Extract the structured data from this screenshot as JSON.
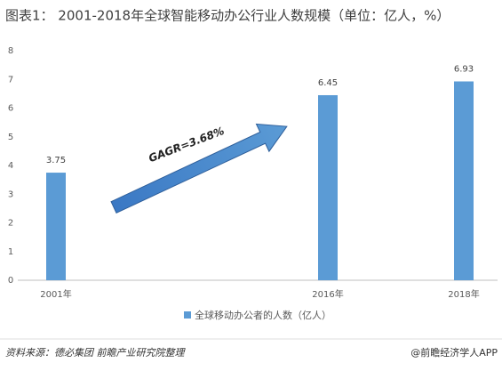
{
  "chart_data": {
    "type": "bar",
    "title": "图表1：  2001-2018年全球智能移动办公行业人数规模（单位：亿人，%）",
    "categories": [
      "2001年",
      null,
      "2016年",
      "2018年"
    ],
    "series": [
      {
        "name": "全球移动办公者的人数（亿人）",
        "color": "#5b9bd5",
        "values": [
          3.75,
          null,
          6.45,
          6.93
        ]
      }
    ],
    "ylim": [
      0,
      8
    ],
    "yticks": [
      0,
      1,
      2,
      3,
      4,
      5,
      6,
      7,
      8
    ],
    "grid": false,
    "annotation": "GAGR=3.68%",
    "source": "资料来源：德必集团 前瞻产业研究院整理",
    "credit": "@前瞻经济学人APP"
  }
}
